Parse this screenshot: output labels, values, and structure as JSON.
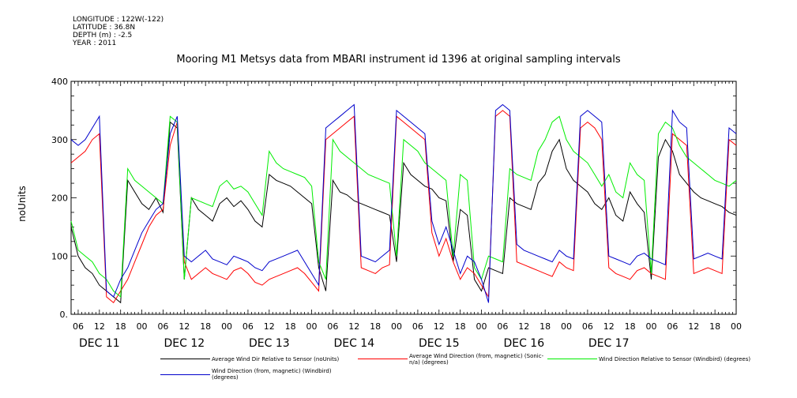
{
  "header": {
    "lines": [
      "LONGITUDE : 122W(-122)",
      "LATITUDE : 36.8N",
      "DEPTH (m) : -2.5",
      "YEAR : 2011"
    ]
  },
  "chart_data": {
    "type": "line",
    "title": "Mooring M1 Metsys data from MBARI instrument id 1396 at original sampling intervals",
    "ylabel": "noUnits",
    "xlabel": "",
    "ylim": [
      0,
      400
    ],
    "yticks": [
      0,
      100,
      200,
      300,
      400
    ],
    "xlim_hours": [
      -20,
      168
    ],
    "xtick_labels": [
      "06",
      "12",
      "18",
      "00",
      "06",
      "12",
      "18",
      "00",
      "06",
      "12",
      "18",
      "00",
      "06",
      "12",
      "18",
      "00",
      "06",
      "12",
      "18",
      "00",
      "06",
      "12",
      "18",
      "00",
      "06",
      "12",
      "18",
      "00",
      "06",
      "12",
      "18",
      "00"
    ],
    "day_labels": [
      "DEC 11",
      "DEC 12",
      "DEC 13",
      "DEC 14",
      "DEC 15",
      "DEC 16",
      "DEC 17"
    ],
    "grid": false,
    "legend_position": "bottom",
    "series": [
      {
        "name": "Average Wind Dir Relative to Sensor (noUnits)",
        "color": "#000000",
        "x": [
          -20,
          -18,
          -16,
          -14,
          -12,
          -10,
          -8,
          -6,
          -4,
          -2,
          0,
          2,
          4,
          6,
          8,
          10,
          12,
          14,
          16,
          18,
          20,
          22,
          24,
          26,
          28,
          30,
          32,
          34,
          36,
          38,
          40,
          42,
          44,
          46,
          48,
          50,
          52,
          54,
          56,
          58,
          60,
          62,
          64,
          66,
          68,
          70,
          72,
          74,
          76,
          78,
          80,
          82,
          84,
          86,
          88,
          90,
          92,
          94,
          96,
          98,
          100,
          102,
          104,
          106,
          108,
          110,
          112,
          114,
          116,
          118,
          120,
          122,
          124,
          126,
          128,
          130,
          132,
          134,
          136,
          138,
          140,
          142,
          144,
          146,
          148,
          150,
          152,
          154,
          156,
          158,
          160,
          162,
          164,
          166,
          168
        ],
        "y": [
          150,
          100,
          80,
          70,
          50,
          40,
          30,
          20,
          230,
          210,
          190,
          180,
          200,
          175,
          330,
          320,
          60,
          200,
          180,
          170,
          160,
          190,
          200,
          185,
          195,
          180,
          160,
          150,
          240,
          230,
          225,
          220,
          210,
          200,
          190,
          80,
          40,
          230,
          210,
          205,
          195,
          190,
          185,
          180,
          175,
          170,
          90,
          260,
          240,
          230,
          220,
          215,
          200,
          195,
          90,
          180,
          170,
          60,
          40,
          80,
          75,
          70,
          200,
          190,
          185,
          180,
          225,
          240,
          280,
          300,
          250,
          230,
          220,
          210,
          190,
          180,
          200,
          170,
          160,
          210,
          190,
          175,
          60,
          270,
          300,
          280,
          240,
          225,
          210,
          200,
          195,
          190,
          185,
          175,
          170
        ]
      },
      {
        "name": "Average Wind Direction (from, magnetic) (Sonic-n/a) (degrees)",
        "color": "#ff0000",
        "x": [
          -20,
          -18,
          -16,
          -14,
          -12,
          -10,
          -8,
          -6,
          -4,
          -2,
          0,
          2,
          4,
          6,
          8,
          10,
          12,
          14,
          16,
          18,
          20,
          22,
          24,
          26,
          28,
          30,
          32,
          34,
          36,
          38,
          40,
          42,
          44,
          46,
          48,
          50,
          52,
          54,
          56,
          58,
          60,
          62,
          64,
          66,
          68,
          70,
          72,
          74,
          76,
          78,
          80,
          82,
          84,
          86,
          88,
          90,
          92,
          94,
          96,
          98,
          100,
          102,
          104,
          106,
          108,
          110,
          112,
          114,
          116,
          118,
          120,
          122,
          124,
          126,
          128,
          130,
          132,
          134,
          136,
          138,
          140,
          142,
          144,
          146,
          148,
          150,
          152,
          154,
          156,
          158,
          160,
          162,
          164,
          166,
          168
        ],
        "y": [
          260,
          270,
          280,
          300,
          310,
          30,
          20,
          40,
          60,
          90,
          120,
          150,
          170,
          180,
          290,
          330,
          90,
          60,
          70,
          80,
          70,
          65,
          60,
          75,
          80,
          70,
          55,
          50,
          60,
          65,
          70,
          75,
          80,
          70,
          55,
          40,
          300,
          310,
          320,
          330,
          340,
          80,
          75,
          70,
          80,
          85,
          340,
          330,
          320,
          310,
          300,
          140,
          100,
          130,
          90,
          60,
          80,
          70,
          50,
          30,
          340,
          350,
          340,
          90,
          85,
          80,
          75,
          70,
          65,
          90,
          80,
          75,
          320,
          330,
          320,
          300,
          80,
          70,
          65,
          60,
          75,
          80,
          70,
          65,
          60,
          310,
          300,
          290,
          70,
          75,
          80,
          75,
          70,
          300,
          290
        ]
      },
      {
        "name": "Wind Direction Relative to Sensor (Windbird) (degrees)",
        "color": "#00ee00",
        "x": [
          -20,
          -18,
          -16,
          -14,
          -12,
          -10,
          -8,
          -6,
          -4,
          -2,
          0,
          2,
          4,
          6,
          8,
          10,
          12,
          14,
          16,
          18,
          20,
          22,
          24,
          26,
          28,
          30,
          32,
          34,
          36,
          38,
          40,
          42,
          44,
          46,
          48,
          50,
          52,
          54,
          56,
          58,
          60,
          62,
          64,
          66,
          68,
          70,
          72,
          74,
          76,
          78,
          80,
          82,
          84,
          86,
          88,
          90,
          92,
          94,
          96,
          98,
          100,
          102,
          104,
          106,
          108,
          110,
          112,
          114,
          116,
          118,
          120,
          122,
          124,
          126,
          128,
          130,
          132,
          134,
          136,
          138,
          140,
          142,
          144,
          146,
          148,
          150,
          152,
          154,
          156,
          158,
          160,
          162,
          164,
          166,
          168
        ],
        "y": [
          160,
          110,
          100,
          90,
          70,
          60,
          40,
          30,
          250,
          230,
          220,
          210,
          200,
          190,
          340,
          330,
          60,
          200,
          195,
          190,
          185,
          220,
          230,
          215,
          220,
          210,
          190,
          170,
          280,
          260,
          250,
          245,
          240,
          235,
          220,
          90,
          60,
          300,
          280,
          270,
          260,
          250,
          240,
          235,
          230,
          225,
          100,
          300,
          290,
          280,
          260,
          250,
          240,
          230,
          100,
          240,
          230,
          80,
          60,
          100,
          95,
          90,
          250,
          240,
          235,
          230,
          280,
          300,
          330,
          340,
          300,
          280,
          270,
          260,
          240,
          220,
          240,
          210,
          200,
          260,
          240,
          230,
          70,
          310,
          330,
          320,
          290,
          270,
          260,
          250,
          240,
          230,
          225,
          220,
          230
        ]
      },
      {
        "name": "Wind Direction (from, magnetic) (Windbird) (degrees)",
        "color": "#0000cc",
        "x": [
          -20,
          -18,
          -16,
          -14,
          -12,
          -10,
          -8,
          -6,
          -4,
          -2,
          0,
          2,
          4,
          6,
          8,
          10,
          12,
          14,
          16,
          18,
          20,
          22,
          24,
          26,
          28,
          30,
          32,
          34,
          36,
          38,
          40,
          42,
          44,
          46,
          48,
          50,
          52,
          54,
          56,
          58,
          60,
          62,
          64,
          66,
          68,
          70,
          72,
          74,
          76,
          78,
          80,
          82,
          84,
          86,
          88,
          90,
          92,
          94,
          96,
          98,
          100,
          102,
          104,
          106,
          108,
          110,
          112,
          114,
          116,
          118,
          120,
          122,
          124,
          126,
          128,
          130,
          132,
          134,
          136,
          138,
          140,
          142,
          144,
          146,
          148,
          150,
          152,
          154,
          156,
          158,
          160,
          162,
          164,
          166,
          168
        ],
        "y": [
          300,
          290,
          300,
          320,
          340,
          40,
          30,
          60,
          80,
          110,
          140,
          160,
          180,
          190,
          310,
          340,
          100,
          90,
          100,
          110,
          95,
          90,
          85,
          100,
          95,
          90,
          80,
          75,
          90,
          95,
          100,
          105,
          110,
          90,
          70,
          50,
          320,
          330,
          340,
          350,
          360,
          100,
          95,
          90,
          100,
          110,
          350,
          340,
          330,
          320,
          310,
          160,
          120,
          150,
          110,
          70,
          100,
          90,
          60,
          20,
          350,
          360,
          350,
          120,
          110,
          105,
          100,
          95,
          90,
          110,
          100,
          95,
          340,
          350,
          340,
          330,
          100,
          95,
          90,
          85,
          100,
          105,
          95,
          90,
          85,
          350,
          330,
          320,
          95,
          100,
          105,
          100,
          95,
          320,
          310
        ]
      }
    ]
  }
}
